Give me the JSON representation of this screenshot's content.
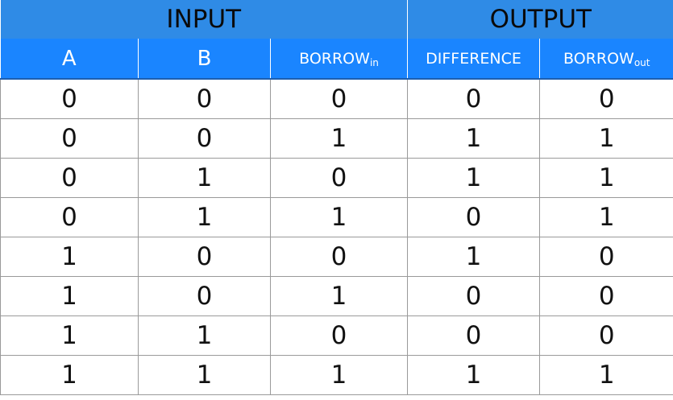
{
  "groups": {
    "input": "INPUT",
    "output": "OUTPUT"
  },
  "columns": {
    "a": "A",
    "b": "B",
    "borrow_in": {
      "main": "BORROW",
      "sub": "in"
    },
    "difference": "DIFFERENCE",
    "borrow_out": {
      "main": "BORROW",
      "sub": "out"
    }
  },
  "rows": [
    [
      "0",
      "0",
      "0",
      "0",
      "0"
    ],
    [
      "0",
      "0",
      "1",
      "1",
      "1"
    ],
    [
      "0",
      "1",
      "0",
      "1",
      "1"
    ],
    [
      "0",
      "1",
      "1",
      "0",
      "1"
    ],
    [
      "1",
      "0",
      "0",
      "1",
      "0"
    ],
    [
      "1",
      "0",
      "1",
      "0",
      "0"
    ],
    [
      "1",
      "1",
      "0",
      "0",
      "0"
    ],
    [
      "1",
      "1",
      "1",
      "1",
      "1"
    ]
  ]
}
